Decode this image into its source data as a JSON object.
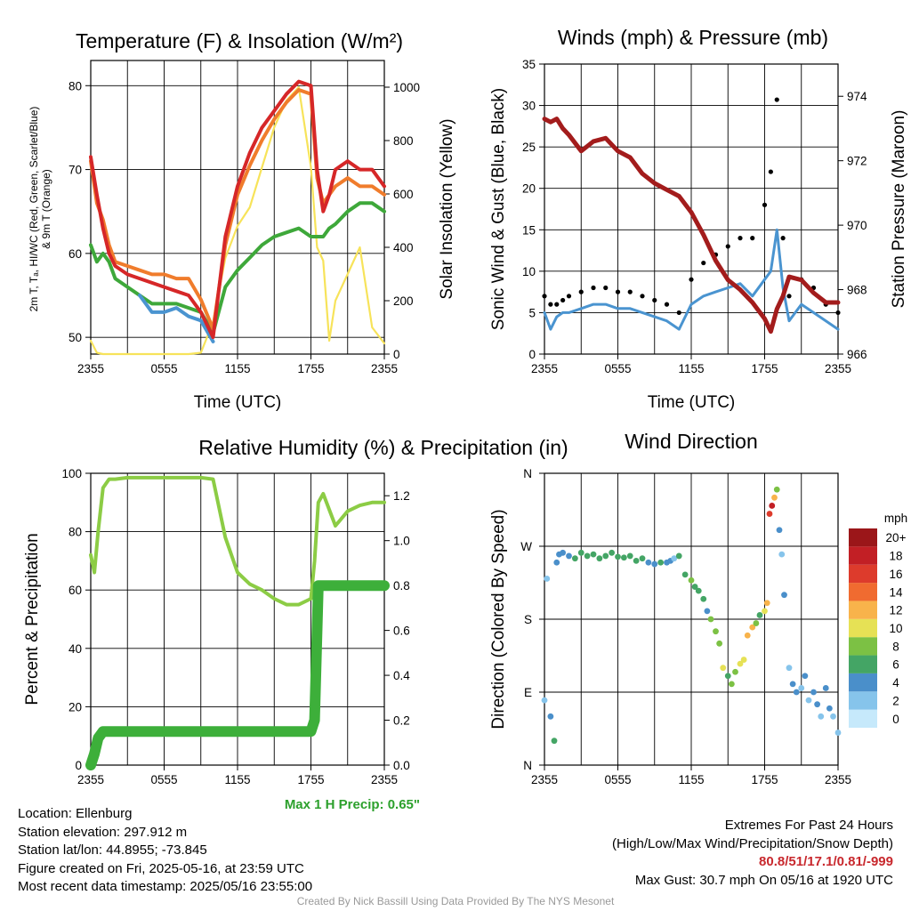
{
  "colors": {
    "temp": "#d62728",
    "dewpoint": "#3ea83a",
    "hiwc_blue": "#4a94d0",
    "temp9m": "#f07c2c",
    "solar": "#f7e35a",
    "wind": "#4a94d0",
    "gust": "#000000",
    "pressure": "#a31c1c",
    "rh": "#8ccc45",
    "precip": "#3daf3a"
  },
  "x_tick_labels": [
    "2355",
    "0555",
    "1155",
    "1755",
    "2355"
  ],
  "charts": [
    {
      "title": "Temperature (F) & Insolation (W/m²)",
      "xlabel": "Time (UTC)",
      "ylabel_left": [
        "2m T, Tₐ, HI/WC (Red, Green, Scarlet/Blue)",
        "& 9m T (Orange)"
      ],
      "ylabel_right": "Solar Insolation (Yellow)"
    },
    {
      "title": "Winds (mph) & Pressure (mb)",
      "xlabel": "Time (UTC)",
      "ylabel_left": "Sonic Wind & Gust (Blue, Black)",
      "ylabel_right": "Station Pressure (Maroon)"
    },
    {
      "title": "Relative Humidity (%) & Precipitation (in)",
      "ylabel_left": "Percent & Precipitation"
    },
    {
      "title": "Wind Direction",
      "ylabel_left": "Direction (Colored By Speed)"
    }
  ],
  "chart_data": [
    {
      "type": "line",
      "x_hours": [
        0,
        0.5,
        1,
        1.5,
        2,
        3,
        4,
        5,
        6,
        7,
        8,
        9,
        10,
        11,
        12,
        13,
        14,
        15,
        16,
        17,
        18,
        18.5,
        19,
        19.5,
        20,
        21,
        22,
        23,
        24
      ],
      "ylim_left": [
        48,
        83
      ],
      "yticks_left": [
        50,
        60,
        70,
        80
      ],
      "ylim_right": [
        0,
        1100
      ],
      "yticks_right": [
        0,
        200,
        400,
        600,
        800,
        1000
      ],
      "series": [
        {
          "key": "temp",
          "axis": "left",
          "values": [
            71.5,
            67,
            63,
            60,
            58.5,
            57.5,
            57,
            56.5,
            56,
            55.5,
            55,
            53,
            50,
            62,
            68,
            72,
            75,
            77,
            79,
            80.5,
            80,
            70,
            65,
            67,
            70,
            71,
            70,
            70,
            68
          ]
        },
        {
          "key": "temp9m",
          "axis": "left",
          "values": [
            71,
            66,
            64,
            61,
            59,
            58.5,
            58,
            57.5,
            57.5,
            57,
            57,
            54.5,
            51,
            61,
            67,
            70.5,
            73.5,
            76,
            78,
            79.5,
            79,
            69,
            66,
            67,
            68,
            69,
            68,
            68,
            67
          ]
        },
        {
          "key": "dewpoint",
          "axis": "left",
          "values": [
            61,
            59,
            60,
            59,
            57,
            56,
            55,
            54,
            54,
            54,
            53.5,
            53,
            50.5,
            56,
            58,
            59.5,
            61,
            62,
            62.5,
            63,
            62,
            62,
            62,
            63,
            63.5,
            65,
            66,
            66,
            65
          ]
        },
        {
          "key": "hiwc_blue",
          "axis": "left",
          "values": [
            null,
            null,
            null,
            null,
            null,
            null,
            55,
            53,
            53,
            53.5,
            52.5,
            52,
            49.5,
            null,
            null,
            null,
            null,
            null,
            null,
            null,
            null,
            null,
            null,
            null,
            null,
            null,
            null,
            null,
            null
          ]
        },
        {
          "key": "solar",
          "axis": "right",
          "values": [
            50,
            5,
            0,
            0,
            0,
            0,
            0,
            0,
            0,
            0,
            0,
            5,
            120,
            360,
            480,
            550,
            700,
            850,
            950,
            1000,
            700,
            400,
            350,
            50,
            200,
            300,
            400,
            100,
            40
          ]
        }
      ]
    },
    {
      "type": "line",
      "x_hours": [
        0,
        0.5,
        1,
        1.5,
        2,
        3,
        4,
        5,
        6,
        7,
        8,
        9,
        10,
        11,
        12,
        13,
        14,
        15,
        16,
        17,
        18,
        18.5,
        19,
        19.5,
        20,
        21,
        22,
        23,
        24
      ],
      "ylim_left": [
        0,
        35
      ],
      "yticks_left": [
        0,
        5,
        10,
        15,
        20,
        25,
        30,
        35
      ],
      "ylim_right": [
        966,
        975
      ],
      "yticks_right": [
        966,
        968,
        970,
        972,
        974
      ],
      "series": [
        {
          "key": "wind",
          "axis": "left",
          "values": [
            5,
            3,
            4.5,
            5,
            5,
            5.5,
            6,
            6,
            5.5,
            5.5,
            5,
            4.5,
            4,
            3,
            6,
            7,
            7.5,
            8,
            8.5,
            7,
            9,
            10,
            15,
            8,
            4,
            6,
            5,
            4,
            3
          ]
        },
        {
          "key": "gust",
          "axis": "left",
          "values": [
            7,
            6,
            6,
            6.5,
            7,
            7.5,
            8,
            8,
            7.5,
            7.5,
            7,
            6.5,
            6,
            5,
            9,
            11,
            12,
            13,
            14,
            14,
            18,
            22,
            30.7,
            14,
            7,
            9,
            8,
            6,
            5
          ]
        },
        {
          "key": "pressure",
          "axis": "right",
          "values": [
            973.3,
            973.2,
            973.3,
            973.0,
            972.8,
            972.3,
            972.6,
            972.7,
            972.3,
            972.1,
            971.6,
            971.3,
            971.1,
            970.9,
            970.4,
            969.7,
            968.9,
            968.3,
            968.0,
            967.6,
            967.1,
            966.7,
            967.4,
            967.8,
            968.4,
            968.3,
            967.9,
            967.6,
            967.6
          ]
        }
      ]
    },
    {
      "type": "line",
      "x_hours": [
        0,
        0.3,
        0.6,
        1,
        1.5,
        2,
        3,
        4,
        5,
        6,
        7,
        8,
        9,
        10,
        11,
        12,
        13,
        14,
        15,
        16,
        17,
        18,
        18.3,
        18.6,
        19,
        20,
        21,
        22,
        23,
        24
      ],
      "ylim_left": [
        0,
        100
      ],
      "yticks_left": [
        0,
        20,
        40,
        60,
        80,
        100
      ],
      "ylim_right": [
        0,
        1.3
      ],
      "yticks_right": [
        0.0,
        0.2,
        0.4,
        0.6,
        0.8,
        1.0,
        1.2
      ],
      "series": [
        {
          "key": "rh",
          "axis": "left",
          "values": [
            72,
            66,
            80,
            95,
            98,
            98,
            98.5,
            98.5,
            98.5,
            98.5,
            98.5,
            98.5,
            98.5,
            98,
            78,
            66,
            62,
            60,
            57,
            55,
            55,
            57,
            70,
            90,
            93,
            82,
            87,
            89,
            90,
            90
          ]
        },
        {
          "key": "precip",
          "axis": "right",
          "values": [
            0,
            0.05,
            0.12,
            0.15,
            0.15,
            0.15,
            0.15,
            0.15,
            0.15,
            0.15,
            0.15,
            0.15,
            0.15,
            0.15,
            0.15,
            0.15,
            0.15,
            0.15,
            0.15,
            0.15,
            0.15,
            0.15,
            0.2,
            0.8,
            0.8,
            0.8,
            0.8,
            0.8,
            0.8,
            0.8
          ]
        }
      ]
    },
    {
      "type": "scatter",
      "yticks": [
        "N",
        "E",
        "S",
        "W",
        "N"
      ],
      "colorbar_unit": "mph",
      "colorbar_labels": [
        "0",
        "2",
        "4",
        "6",
        "8",
        "10",
        "12",
        "14",
        "16",
        "18",
        "20+"
      ],
      "colorbar_colors": [
        "#c6e9fb",
        "#86c4eb",
        "#4a8fca",
        "#44a565",
        "#7cc144",
        "#e6e155",
        "#f8b34b",
        "#f06b30",
        "#dd3b2c",
        "#c21f25",
        "#9b1619"
      ],
      "points_hours": [
        0,
        0.2,
        0.5,
        0.8,
        1,
        1.2,
        1.5,
        2,
        2.5,
        3,
        3.5,
        4,
        4.5,
        5,
        5.5,
        6,
        6.5,
        7,
        7.5,
        8,
        8.5,
        9,
        9.5,
        10,
        10.3,
        10.6,
        11,
        11.5,
        12,
        12.3,
        12.6,
        13,
        13.3,
        13.6,
        14,
        14.3,
        14.6,
        15,
        15.3,
        15.6,
        16,
        16.3,
        16.6,
        17,
        17.3,
        17.6,
        18,
        18.2,
        18.4,
        18.6,
        18.8,
        19,
        19.2,
        19.4,
        19.6,
        20,
        20.3,
        20.6,
        21,
        21.3,
        21.6,
        22,
        22.3,
        22.6,
        23,
        23.3,
        23.6,
        24
      ],
      "points_dir_deg": [
        80,
        230,
        60,
        30,
        250,
        260,
        262,
        258,
        255,
        262,
        258,
        260,
        255,
        258,
        262,
        257,
        256,
        258,
        252,
        255,
        250,
        248,
        250,
        250,
        252,
        255,
        258,
        235,
        228,
        220,
        215,
        205,
        190,
        180,
        165,
        150,
        120,
        110,
        100,
        115,
        125,
        130,
        160,
        170,
        175,
        185,
        190,
        200,
        310,
        320,
        330,
        340,
        290,
        260,
        210,
        120,
        100,
        90,
        95,
        110,
        80,
        90,
        75,
        60,
        95,
        70,
        60,
        40
      ],
      "points_speed": [
        2,
        1,
        4,
        5,
        3,
        3,
        4,
        4,
        5,
        5,
        6,
        6,
        6,
        5,
        6,
        5,
        5,
        6,
        5,
        5,
        4,
        4,
        5,
        4,
        3,
        2,
        6,
        5,
        7,
        6,
        6,
        5,
        4,
        8,
        7,
        8,
        9,
        6,
        7,
        8,
        10,
        9,
        11,
        12,
        8,
        6,
        10,
        12,
        16,
        18,
        11,
        7,
        3,
        2,
        4,
        2,
        3,
        3,
        2,
        3,
        2,
        4,
        3,
        2,
        3,
        4,
        2,
        1
      ]
    }
  ],
  "precip_max_label": "Max 1 H Precip: 0.65\"",
  "info_left": [
    "Location: Ellenburg",
    "Station elevation: 297.912 m",
    "Station lat/lon: 44.8955; -73.845",
    "Figure created on Fri, 2025-05-16, at 23:59 UTC",
    "Most recent data timestamp: 2025/05/16 23:55:00"
  ],
  "info_right": {
    "line1": "Extremes For Past 24 Hours",
    "line2": "(High/Low/Max Wind/Precipitation/Snow Depth)",
    "extremes": "80.8/51/17.1/0.81/-999",
    "max_gust": "Max Gust: 30.7 mph On 05/16 at 1920 UTC"
  },
  "credit": "Created By Nick Bassill Using Data Provided By The NYS Mesonet"
}
